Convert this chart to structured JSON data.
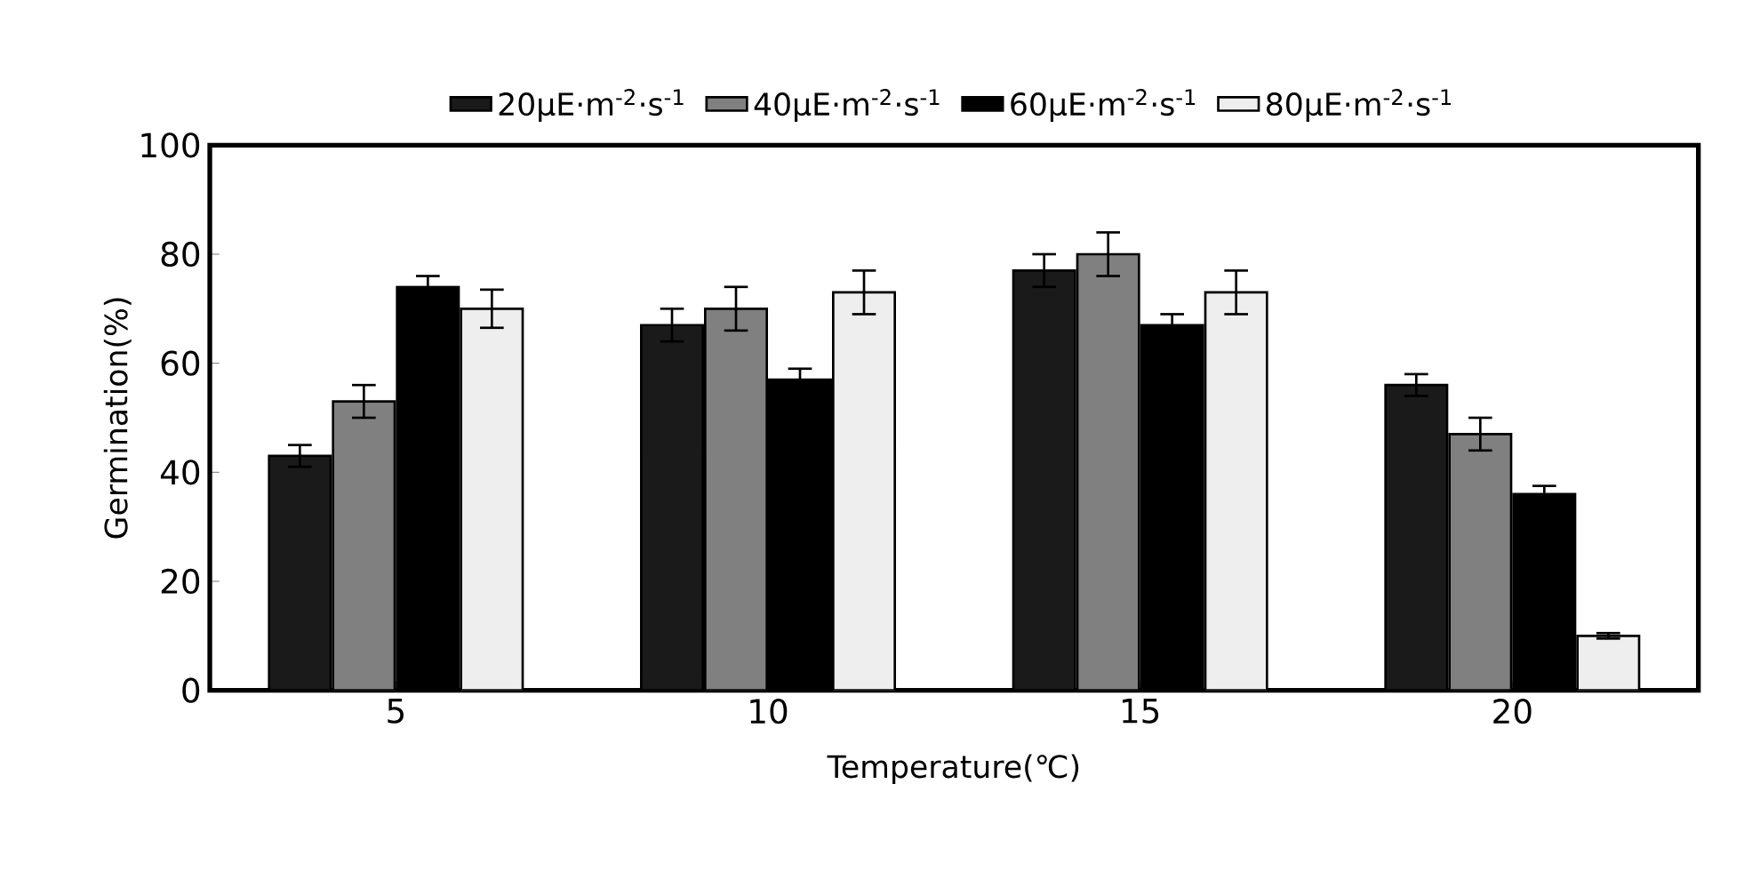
{
  "chart_data": {
    "type": "bar",
    "xlabel": "Temperature(℃)",
    "ylabel": "Germination(%)",
    "categories": [
      "5",
      "10",
      "15",
      "20"
    ],
    "series": [
      {
        "name": "20μE·m$^{-2}$·s$^{-1}$",
        "color": "#1a1a1a",
        "values": [
          43,
          67,
          77,
          56
        ],
        "errors": [
          2,
          3,
          3,
          2
        ]
      },
      {
        "name": "40μE·m$^{-2}$·s$^{-1}$",
        "color": "#808080",
        "values": [
          53,
          70,
          80,
          47
        ],
        "errors": [
          3,
          4,
          4,
          3
        ]
      },
      {
        "name": "60μE·m$^{-2}$·s$^{-1}$",
        "color": "#000000",
        "values": [
          74,
          57,
          67,
          36
        ],
        "errors": [
          2,
          2,
          2,
          1.5
        ]
      },
      {
        "name": "80μE·m$^{-2}$·s$^{-1}$",
        "color": "#eeeeee",
        "values": [
          70,
          73,
          73,
          10
        ],
        "errors": [
          3.5,
          4,
          4,
          0.5
        ]
      }
    ],
    "ylim": [
      0,
      100
    ],
    "yticks": [
      0,
      20,
      40,
      60,
      80,
      100
    ],
    "legend": "top"
  }
}
